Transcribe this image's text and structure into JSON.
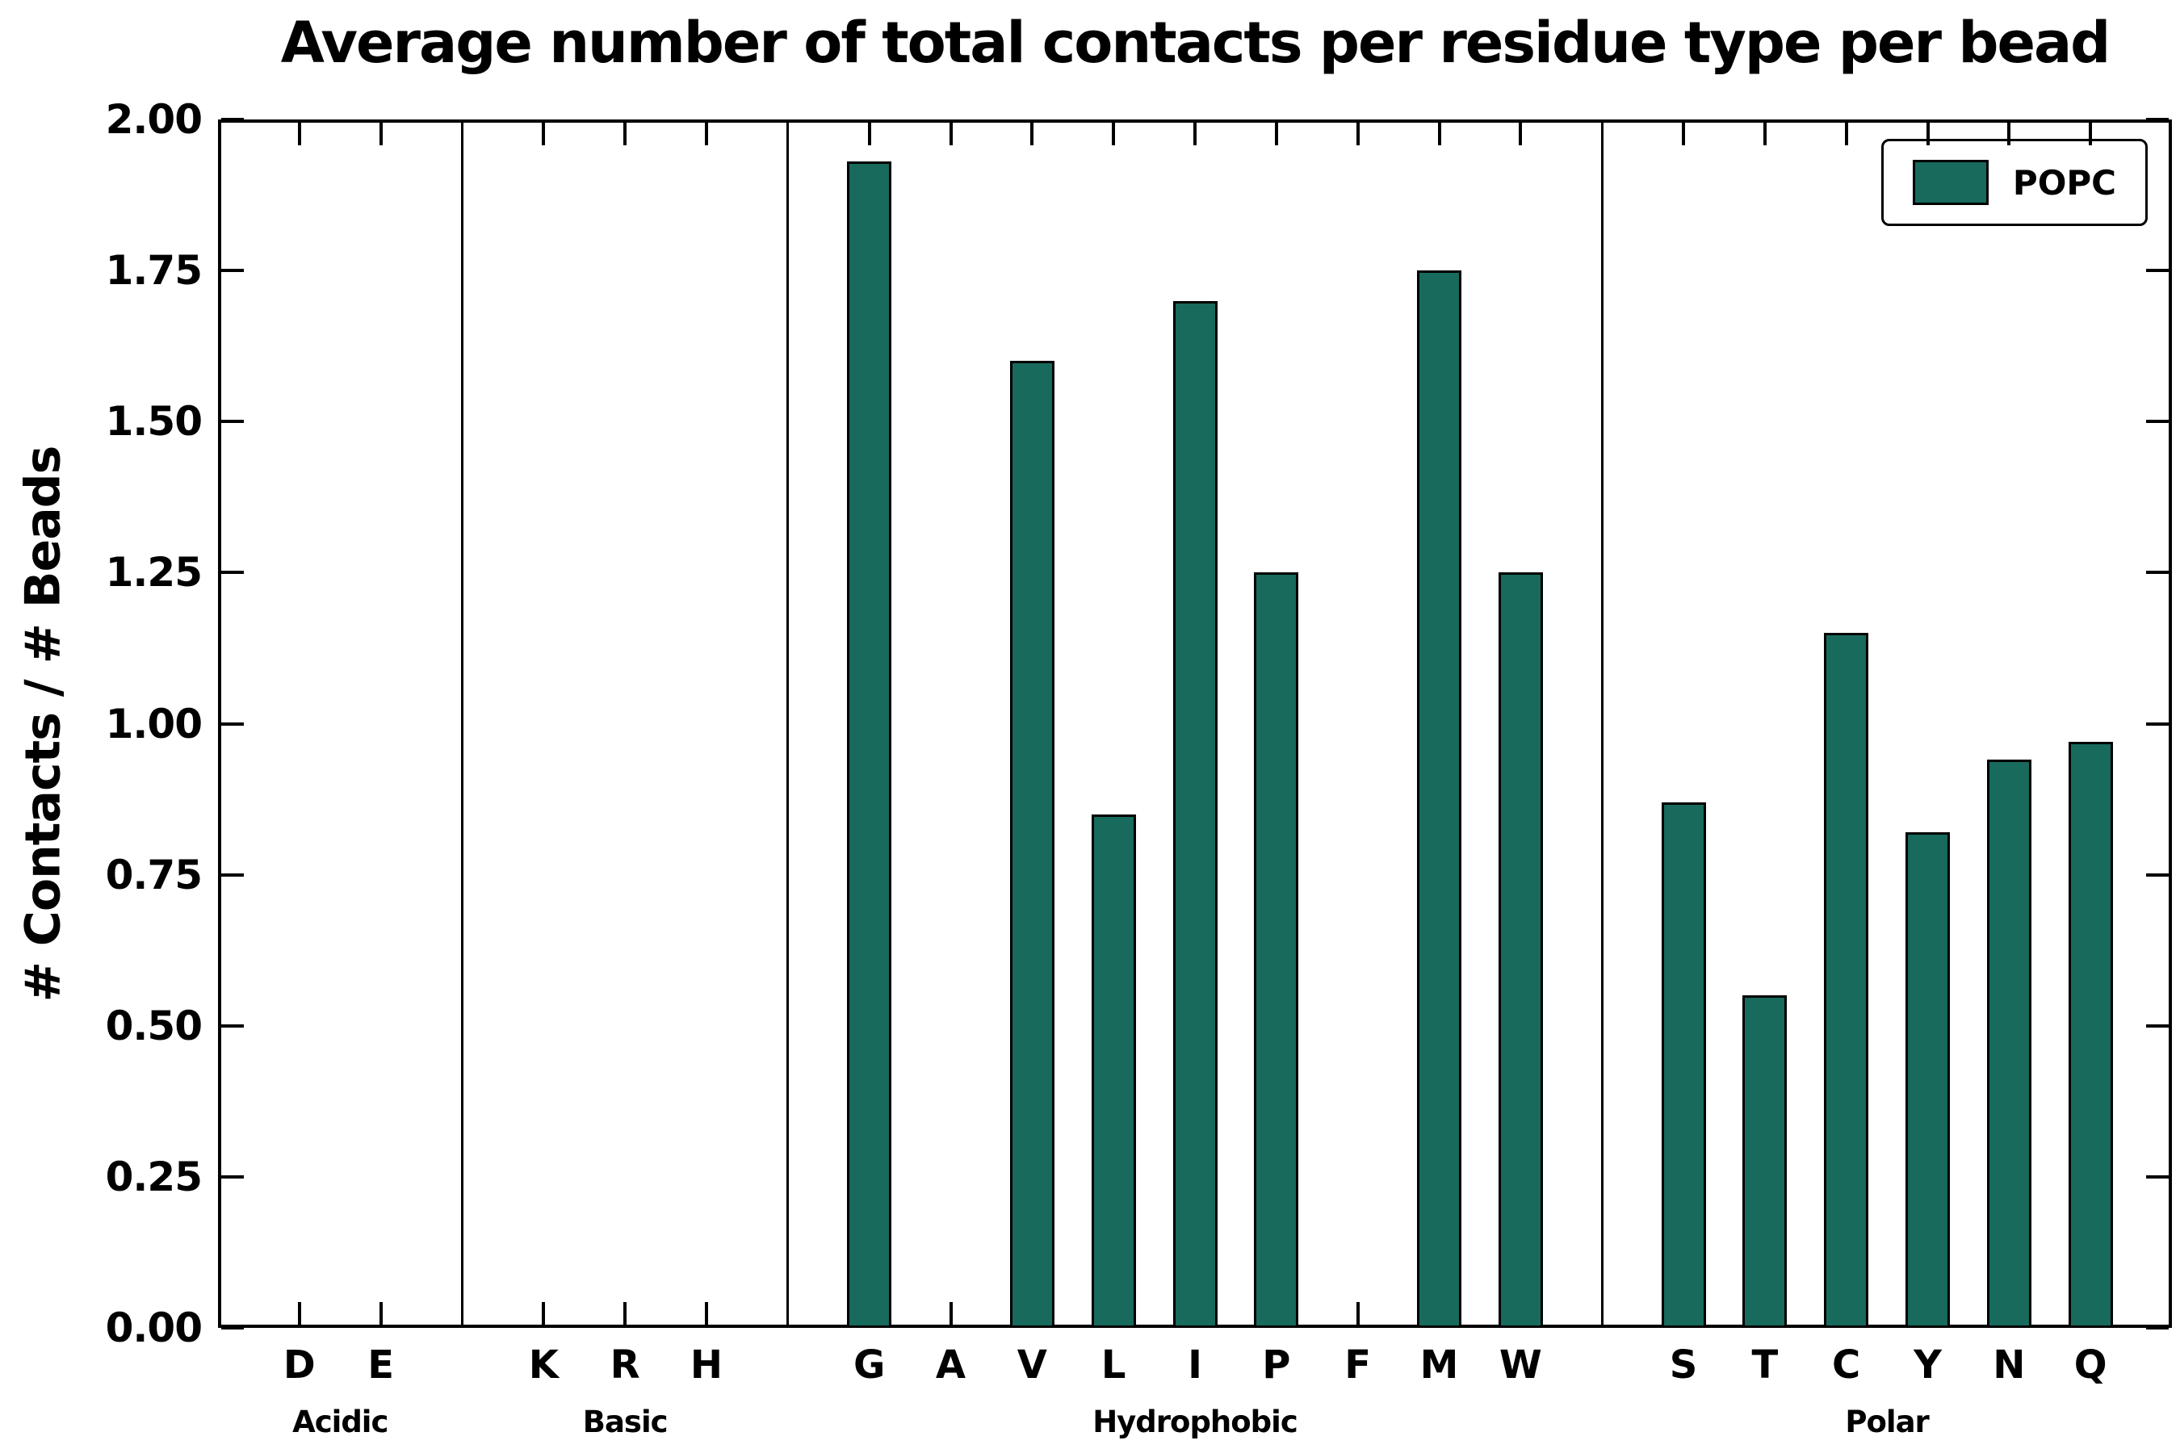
{
  "colors": {
    "bar_fill": "#176a5c",
    "bar_edge": "#000000",
    "axis": "#000000",
    "background": "#ffffff"
  },
  "chart_data": {
    "type": "bar",
    "title": "Average number of total contacts per residue type per bead",
    "ylabel": "# Contacts / # Beads",
    "xlabel": "",
    "ylim": [
      0.0,
      2.0
    ],
    "yticks": [
      0.0,
      0.25,
      0.5,
      0.75,
      1.0,
      1.25,
      1.5,
      1.75,
      2.0
    ],
    "grid": false,
    "legend_position": "upper right",
    "legend_label": "POPC",
    "groups": [
      {
        "label": "Acidic",
        "categories": [
          "D",
          "E"
        ],
        "values": [
          0.0,
          0.0
        ]
      },
      {
        "label": "Basic",
        "categories": [
          "K",
          "R",
          "H"
        ],
        "values": [
          0.0,
          0.0,
          0.0
        ]
      },
      {
        "label": "Hydrophobic",
        "categories": [
          "G",
          "A",
          "V",
          "L",
          "I",
          "P",
          "F",
          "M",
          "W"
        ],
        "values": [
          1.93,
          0.0,
          1.6,
          0.85,
          1.7,
          1.25,
          0.0,
          1.75,
          1.25
        ]
      },
      {
        "label": "Polar",
        "categories": [
          "S",
          "T",
          "C",
          "Y",
          "N",
          "Q"
        ],
        "values": [
          0.87,
          0.55,
          1.15,
          0.82,
          0.94,
          0.97
        ]
      }
    ]
  }
}
